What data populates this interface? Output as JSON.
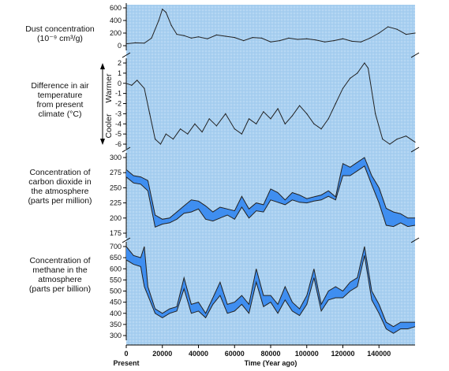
{
  "chart_data": [
    {
      "type": "line",
      "label_lines": [
        "Dust concentration",
        "(10⁻⁹ cm³/g)"
      ],
      "y_ticks": [
        "600",
        "400",
        "200",
        "0"
      ],
      "ylim": [
        0,
        650
      ],
      "x": [
        0,
        5000,
        10000,
        14000,
        18000,
        20000,
        22000,
        25000,
        28000,
        32000,
        36000,
        40000,
        45000,
        50000,
        55000,
        60000,
        65000,
        70000,
        75000,
        80000,
        85000,
        90000,
        95000,
        100000,
        105000,
        110000,
        115000,
        120000,
        125000,
        130000,
        135000,
        140000,
        145000,
        150000,
        155000,
        160000
      ],
      "y": [
        30,
        45,
        40,
        120,
        400,
        580,
        530,
        320,
        180,
        160,
        120,
        140,
        110,
        170,
        150,
        130,
        80,
        130,
        120,
        60,
        80,
        120,
        100,
        110,
        90,
        60,
        80,
        110,
        70,
        60,
        120,
        200,
        300,
        260,
        180,
        200
      ]
    },
    {
      "type": "line",
      "label_lines": [
        "Difference in air",
        "temperature",
        "from present",
        "climate (°C)"
      ],
      "side_labels": {
        "up": "Warmer",
        "down": "Cooler"
      },
      "y_ticks": [
        "2",
        "1",
        "0",
        "-1",
        "-2",
        "-3",
        "-4",
        "-5",
        "-6"
      ],
      "ylim": [
        -6.5,
        2.5
      ],
      "x": [
        0,
        3000,
        6000,
        10000,
        13000,
        16000,
        19000,
        22000,
        26000,
        30000,
        34000,
        38000,
        42000,
        46000,
        50000,
        55000,
        60000,
        64000,
        68000,
        72000,
        76000,
        80000,
        84000,
        88000,
        92000,
        96000,
        100000,
        104000,
        108000,
        112000,
        116000,
        120000,
        124000,
        128000,
        132000,
        134000,
        138000,
        142000,
        146000,
        150000,
        155000,
        160000
      ],
      "y": [
        0,
        -0.2,
        0.3,
        -0.5,
        -3,
        -5.5,
        -6,
        -5,
        -5.5,
        -4.5,
        -5,
        -4,
        -4.8,
        -3.5,
        -4.2,
        -3,
        -4.5,
        -5,
        -3.5,
        -4,
        -2.8,
        -3.5,
        -2.5,
        -4,
        -3.2,
        -2.2,
        -3,
        -4,
        -4.5,
        -3.5,
        -2,
        -0.5,
        0.5,
        1,
        2,
        1.5,
        -3,
        -5.5,
        -6,
        -5.5,
        -5.2,
        -5.8
      ]
    },
    {
      "type": "area",
      "label_lines": [
        "Concentration of",
        "carbon dioxide in",
        "the atmosphere",
        "(parts per million)"
      ],
      "y_ticks": [
        "300",
        "275",
        "250",
        "225",
        "200",
        "175"
      ],
      "ylim": [
        168,
        306
      ],
      "x": [
        0,
        4000,
        8000,
        12000,
        16000,
        20000,
        24000,
        28000,
        32000,
        36000,
        40000,
        44000,
        48000,
        52000,
        56000,
        60000,
        64000,
        68000,
        72000,
        76000,
        80000,
        84000,
        88000,
        92000,
        96000,
        100000,
        104000,
        108000,
        112000,
        116000,
        120000,
        124000,
        128000,
        132000,
        136000,
        140000,
        144000,
        148000,
        152000,
        156000,
        160000
      ],
      "series": [
        {
          "name": "upper",
          "values": [
            280,
            270,
            268,
            262,
            205,
            198,
            200,
            210,
            220,
            230,
            228,
            220,
            210,
            218,
            215,
            212,
            236,
            215,
            225,
            222,
            248,
            242,
            230,
            242,
            238,
            232,
            235,
            238,
            245,
            235,
            290,
            284,
            292,
            300,
            270,
            250,
            216,
            210,
            207,
            200,
            200
          ]
        },
        {
          "name": "lower",
          "values": [
            268,
            258,
            256,
            245,
            185,
            190,
            192,
            198,
            208,
            210,
            215,
            198,
            195,
            200,
            205,
            198,
            218,
            200,
            212,
            210,
            230,
            226,
            222,
            230,
            226,
            225,
            228,
            230,
            236,
            230,
            270,
            270,
            278,
            286,
            255,
            225,
            188,
            186,
            192,
            186,
            188
          ]
        }
      ]
    },
    {
      "type": "area",
      "label_lines": [
        "Concentration of",
        "methane in the",
        "atmosphere",
        "(parts per billion)"
      ],
      "y_ticks": [
        "700",
        "650",
        "600",
        "550",
        "500",
        "450",
        "400",
        "350",
        "300"
      ],
      "ylim": [
        280,
        805
      ],
      "x": [
        0,
        4000,
        8000,
        10000,
        12000,
        16000,
        20000,
        24000,
        28000,
        32000,
        36000,
        40000,
        44000,
        48000,
        52000,
        56000,
        60000,
        64000,
        68000,
        72000,
        76000,
        80000,
        84000,
        88000,
        92000,
        96000,
        100000,
        104000,
        108000,
        112000,
        116000,
        120000,
        124000,
        128000,
        132000,
        136000,
        140000,
        144000,
        148000,
        152000,
        156000,
        160000
      ],
      "series": [
        {
          "name": "upper",
          "values": [
            700,
            660,
            650,
            700,
            520,
            420,
            400,
            420,
            430,
            560,
            440,
            450,
            400,
            470,
            540,
            440,
            450,
            480,
            440,
            600,
            480,
            480,
            440,
            520,
            450,
            420,
            480,
            600,
            440,
            500,
            520,
            500,
            540,
            560,
            700,
            500,
            440,
            360,
            340,
            360,
            360,
            360
          ]
        },
        {
          "name": "lower",
          "values": [
            640,
            620,
            610,
            520,
            480,
            400,
            380,
            400,
            410,
            510,
            400,
            410,
            380,
            440,
            480,
            400,
            410,
            440,
            400,
            540,
            430,
            450,
            400,
            460,
            410,
            390,
            440,
            560,
            410,
            460,
            470,
            470,
            500,
            520,
            660,
            460,
            400,
            330,
            310,
            330,
            330,
            340
          ]
        }
      ]
    }
  ],
  "x_axis": {
    "xlim": [
      0,
      160000
    ],
    "ticks": [
      0,
      20000,
      40000,
      60000,
      80000,
      100000,
      120000,
      140000
    ],
    "present_label": "Present",
    "axis_label": "Time (Year ago)"
  },
  "colors": {
    "plot_bg": "#a6cdee",
    "band_fill": "#3f8ef0",
    "line": "#222222"
  }
}
